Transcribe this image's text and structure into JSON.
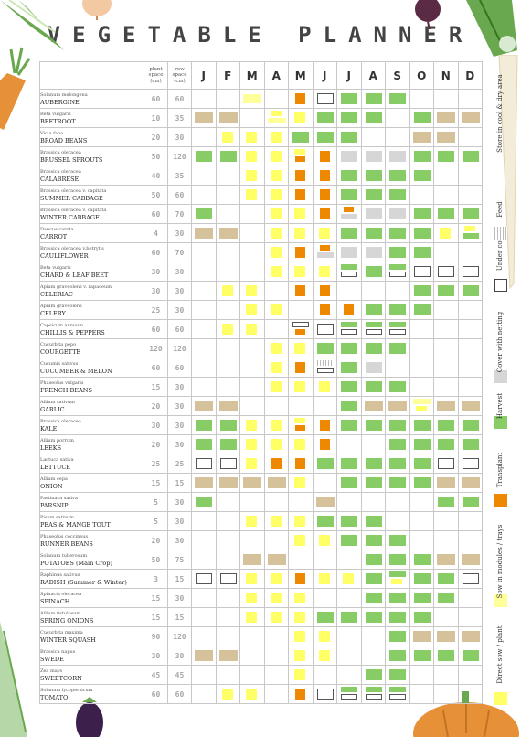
{
  "title": "VEGETABLE PLANNER",
  "headers": {
    "plant_space": "plant space (cm)",
    "row_space": "row space (cm)",
    "months": [
      "J",
      "F",
      "M",
      "A",
      "M",
      "J",
      "J",
      "A",
      "S",
      "O",
      "N",
      "D"
    ]
  },
  "colors": {
    "direct_sow": "#ffff66",
    "sow_modules": "#ffff99",
    "transplant": "#ee8800",
    "harvest": "#88cc66",
    "cover_netting": "#d6d6d6",
    "under_cover": "#ffffff",
    "feed": "#d0d0d0",
    "store": "#d6c29a"
  },
  "legend": [
    {
      "label": "Direct sow / plant",
      "key": "direct_sow"
    },
    {
      "label": "Sow in modules / trays",
      "key": "sow_modules"
    },
    {
      "label": "Transplant",
      "key": "transplant"
    },
    {
      "label": "Harvest",
      "key": "harvest"
    },
    {
      "label": "Cover with netting",
      "key": "cover_netting"
    },
    {
      "label": "Under cover",
      "key": "under_cover"
    },
    {
      "label": "Feed",
      "key": "feed"
    },
    {
      "label": "Store in cool & dry area",
      "key": "store"
    }
  ],
  "rows": [
    {
      "sci": "Solanum melongena",
      "name": "AUBERGINE",
      "plant": "60",
      "row": "60",
      "months": [
        "",
        "",
        "s",
        "",
        "t",
        "u",
        "h",
        "h",
        "h",
        "",
        "",
        ""
      ]
    },
    {
      "sci": "Beta vulgaris",
      "name": "BEETROOT",
      "plant": "10",
      "row": "35",
      "months": [
        "st",
        "st",
        "",
        "ds",
        "d",
        "h",
        "h",
        "h",
        "",
        "h",
        "st",
        "st"
      ]
    },
    {
      "sci": "Vicia faba",
      "name": "BROAD BEANS",
      "plant": "20",
      "row": "30",
      "months": [
        "",
        "d",
        "d",
        "d",
        "h",
        "h",
        "h",
        "",
        "",
        "st",
        "st",
        ""
      ]
    },
    {
      "sci": "Brassica oleracea",
      "name": "BRUSSEL SPROUTS",
      "plant": "50",
      "row": "120",
      "months": [
        "h",
        "h",
        "d",
        "d",
        "dt",
        "t",
        "c",
        "c",
        "c",
        "h",
        "h",
        "h"
      ]
    },
    {
      "sci": "Brassica oleracea",
      "name": "CALABRESE",
      "plant": "40",
      "row": "35",
      "months": [
        "",
        "",
        "d",
        "d",
        "t",
        "t",
        "h",
        "h",
        "h",
        "h",
        "",
        ""
      ]
    },
    {
      "sci": "Brassica oleracea v. capitata",
      "name": "SUMMER CABBAGE",
      "plant": "50",
      "row": "60",
      "months": [
        "",
        "",
        "d",
        "d",
        "t",
        "t",
        "h",
        "h",
        "h",
        "",
        "",
        ""
      ]
    },
    {
      "sci": "Brassica oleracea v. capitata",
      "name": "WINTER CABBAGE",
      "plant": "60",
      "row": "70",
      "months": [
        "h",
        "",
        "",
        "d",
        "d",
        "t",
        "tc",
        "c",
        "c",
        "h",
        "h",
        "h"
      ]
    },
    {
      "sci": "Daucus carota",
      "name": "CARROT",
      "plant": "4",
      "row": "30",
      "months": [
        "st",
        "st",
        "",
        "d",
        "d",
        "d",
        "h",
        "h",
        "h",
        "h",
        "d",
        "dh"
      ]
    },
    {
      "sci": "Brassica oleracea v.botrytis",
      "name": "CAULIFLOWER",
      "plant": "60",
      "row": "70",
      "months": [
        "",
        "",
        "",
        "d",
        "t",
        "tc",
        "c",
        "c",
        "h",
        "h",
        "",
        ""
      ]
    },
    {
      "sci": "Beta vulgaris",
      "name": "CHARD & LEAF BEET",
      "plant": "30",
      "row": "30",
      "months": [
        "",
        "",
        "",
        "d",
        "d",
        "d",
        "hu",
        "h",
        "hu",
        "u",
        "u",
        "u"
      ]
    },
    {
      "sci": "Apium graveolens v. rapaceum",
      "name": "CELERIAC",
      "plant": "30",
      "row": "30",
      "months": [
        "",
        "d",
        "d",
        "",
        "t",
        "t",
        "",
        "",
        "",
        "h",
        "h",
        "h"
      ]
    },
    {
      "sci": "Apium graveolens",
      "name": "CELERY",
      "plant": "25",
      "row": "30",
      "months": [
        "",
        "",
        "d",
        "d",
        "",
        "t",
        "t",
        "h",
        "h",
        "h",
        "",
        ""
      ]
    },
    {
      "sci": "Capsicum annuum",
      "name": "CHILLIS & PEPPERS",
      "plant": "60",
      "row": "60",
      "months": [
        "",
        "d",
        "d",
        "",
        "ut",
        "u",
        "hu",
        "hu",
        "hu",
        "",
        "",
        ""
      ]
    },
    {
      "sci": "Cucurbita pepo",
      "name": "COURGETTE",
      "plant": "120",
      "row": "120",
      "months": [
        "",
        "",
        "",
        "d",
        "d",
        "h",
        "h",
        "h",
        "h",
        "",
        "",
        ""
      ]
    },
    {
      "sci": "Cucumis sativus",
      "name": "CUCUMBER & MELON",
      "plant": "60",
      "row": "60",
      "months": [
        "",
        "",
        "",
        "d",
        "t",
        "fu",
        "h",
        "c",
        "",
        "",
        "",
        ""
      ]
    },
    {
      "sci": "Phaseolus vulgaris",
      "name": "FRENCH BEANS",
      "plant": "15",
      "row": "30",
      "months": [
        "",
        "",
        "",
        "d",
        "d",
        "d",
        "h",
        "h",
        "h",
        "",
        "",
        ""
      ]
    },
    {
      "sci": "Allium sativum",
      "name": "GARLIC",
      "plant": "20",
      "row": "30",
      "months": [
        "st",
        "st",
        "",
        "",
        "",
        "",
        "h",
        "st",
        "st",
        "sd",
        "st",
        "st"
      ]
    },
    {
      "sci": "Brassica oleracea",
      "name": "KALE",
      "plant": "30",
      "row": "30",
      "months": [
        "h",
        "h",
        "d",
        "d",
        "dt",
        "t",
        "h",
        "h",
        "h",
        "h",
        "h",
        "h"
      ]
    },
    {
      "sci": "Allium porrum",
      "name": "LEEKS",
      "plant": "20",
      "row": "30",
      "months": [
        "h",
        "h",
        "d",
        "d",
        "d",
        "t",
        "",
        "",
        "h",
        "h",
        "h",
        "h"
      ]
    },
    {
      "sci": "Lactuca sativa",
      "name": "LETTUCE",
      "plant": "25",
      "row": "25",
      "months": [
        "u",
        "u",
        "d",
        "t",
        "t",
        "h",
        "h",
        "h",
        "h",
        "h",
        "u",
        "u"
      ]
    },
    {
      "sci": "Allium cepa",
      "name": "ONION",
      "plant": "15",
      "row": "15",
      "months": [
        "st",
        "st",
        "st",
        "st",
        "d",
        "",
        "h",
        "h",
        "h",
        "h",
        "st",
        "st"
      ]
    },
    {
      "sci": "Pastinaca sativa",
      "name": "PARSNIP",
      "plant": "5",
      "row": "30",
      "months": [
        "h",
        "",
        "",
        "",
        "",
        "st",
        "",
        "",
        "",
        "",
        "h",
        "h"
      ]
    },
    {
      "sci": "Pisum sativum",
      "name": "PEAS & MANGE TOUT",
      "plant": "5",
      "row": "30",
      "months": [
        "",
        "",
        "d",
        "d",
        "d",
        "h",
        "h",
        "h",
        "",
        "",
        "",
        ""
      ]
    },
    {
      "sci": "Phaseolus coccineus",
      "name": "RUNNER BEANS",
      "plant": "20",
      "row": "30",
      "months": [
        "",
        "",
        "",
        "",
        "d",
        "d",
        "h",
        "h",
        "h",
        "",
        "",
        ""
      ]
    },
    {
      "sci": "Solanum tuberosum",
      "name": "POTATOES (Main Crop)",
      "plant": "50",
      "row": "75",
      "months": [
        "",
        "",
        "st",
        "st",
        "",
        "",
        "",
        "h",
        "h",
        "h",
        "st",
        "st"
      ]
    },
    {
      "sci": "Raphinus sativus",
      "name": "RADISH (Summer & Winter)",
      "plant": "3",
      "row": "15",
      "months": [
        "u",
        "u",
        "d",
        "d",
        "t",
        "d",
        "d",
        "h",
        "hd",
        "h",
        "h",
        "u"
      ]
    },
    {
      "sci": "Spinacia oleracea",
      "name": "SPINACH",
      "plant": "15",
      "row": "30",
      "months": [
        "",
        "",
        "d",
        "d",
        "d",
        "",
        "",
        "h",
        "h",
        "h",
        "h",
        ""
      ]
    },
    {
      "sci": "Allium fistulosum",
      "name": "SPRING ONIONS",
      "plant": "15",
      "row": "15",
      "months": [
        "",
        "",
        "d",
        "d",
        "d",
        "h",
        "h",
        "h",
        "h",
        "h",
        "",
        ""
      ]
    },
    {
      "sci": "Cucurbita maxima",
      "name": "WINTER SQUASH",
      "plant": "90",
      "row": "120",
      "months": [
        "",
        "",
        "",
        "",
        "d",
        "d",
        "",
        "",
        "h",
        "st",
        "st",
        "st"
      ]
    },
    {
      "sci": "Brassica napus",
      "name": "SWEDE",
      "plant": "30",
      "row": "30",
      "months": [
        "st",
        "st",
        "",
        "",
        "d",
        "d",
        "",
        "",
        "h",
        "h",
        "h",
        "h"
      ]
    },
    {
      "sci": "Zea mays",
      "name": "SWEETCORN",
      "plant": "45",
      "row": "45",
      "months": [
        "",
        "",
        "",
        "",
        "d",
        "",
        "",
        "h",
        "h",
        "",
        "",
        ""
      ]
    },
    {
      "sci": "Solanum lycopersicum",
      "name": "TOMATO",
      "plant": "60",
      "row": "60",
      "months": [
        "",
        "d",
        "d",
        "",
        "t",
        "u",
        "hu",
        "hu",
        "hu",
        "",
        "",
        ""
      ]
    }
  ]
}
